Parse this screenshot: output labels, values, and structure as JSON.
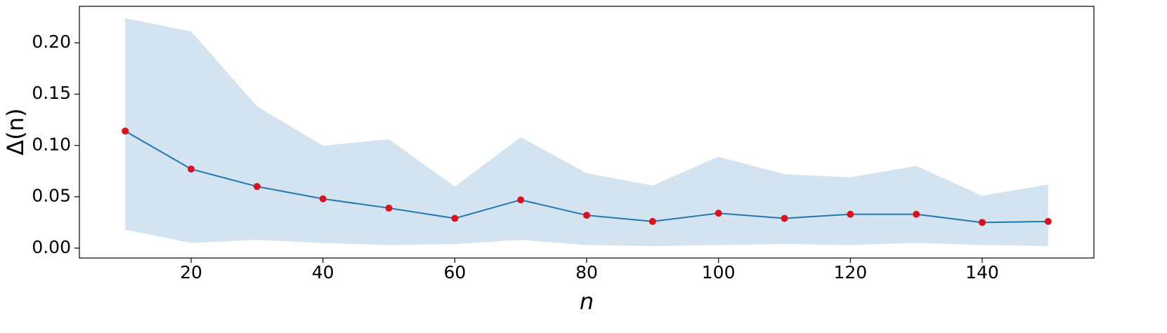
{
  "chart_data": {
    "type": "line",
    "x_label": "n",
    "y_label": "Δ(n)",
    "x": [
      10,
      20,
      30,
      40,
      50,
      60,
      70,
      80,
      90,
      100,
      110,
      120,
      130,
      140,
      150
    ],
    "series": [
      {
        "color": "#1f77b4",
        "values": [
          0.114,
          0.077,
          0.06,
          0.048,
          0.039,
          0.029,
          0.047,
          0.032,
          0.026,
          0.034,
          0.029,
          0.033,
          0.033,
          0.025,
          0.026
        ]
      }
    ],
    "marker_color": "#e0101a",
    "band": {
      "color": "#d3e3ef",
      "upper": [
        0.224,
        0.211,
        0.138,
        0.0997,
        0.106,
        0.06,
        0.108,
        0.073,
        0.061,
        0.089,
        0.072,
        0.069,
        0.08,
        0.051,
        0.062
      ],
      "lower": [
        0.018,
        0.005,
        0.008,
        0.005,
        0.003,
        0.004,
        0.008,
        0.003,
        0.002,
        0.003,
        0.004,
        0.003,
        0.005,
        0.003,
        0.002
      ]
    },
    "xlim": [
      3.05,
      156.95
    ],
    "ylim": [
      -0.0096,
      0.2355
    ],
    "xticks": [
      20,
      40,
      60,
      80,
      100,
      120,
      140
    ],
    "yticks": [
      {
        "value": 0,
        "label": "0.00"
      },
      0.05,
      {
        "value": 0.1,
        "label": "0.10"
      },
      0.15,
      {
        "value": 0.2,
        "label": "0.20"
      }
    ],
    "grid": false
  }
}
